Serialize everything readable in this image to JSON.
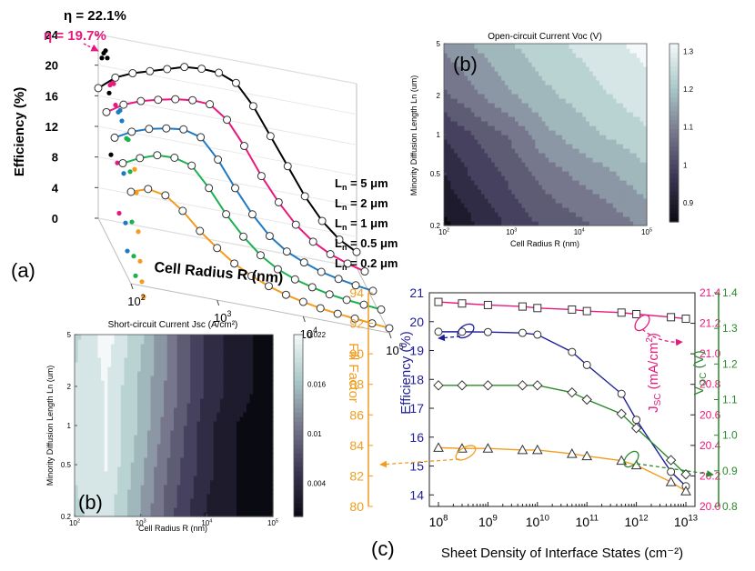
{
  "figure": {
    "panel_labels": [
      "(a)",
      "(b)",
      "(b)",
      "(c)"
    ]
  },
  "chart_data": [
    {
      "id": "a",
      "type": "line",
      "projection": "3d",
      "panel_label": "(a)",
      "xlabel": "Cell Radius R (nm)",
      "ylabel": "Efficiency (%)",
      "xscale": "log",
      "xlim": [
        100,
        100000
      ],
      "ylim": [
        0,
        24
      ],
      "yticks": [
        0,
        4,
        8,
        12,
        16,
        20,
        24
      ],
      "xtick_labels": [
        "10^2",
        "10^3",
        "10^4",
        "10^5"
      ],
      "annotations": [
        {
          "text": "η = 22.1%",
          "color": "#000000"
        },
        {
          "text": "η = 19.7%",
          "color": "#e8197d"
        }
      ],
      "x": [
        100,
        158,
        251,
        398,
        631,
        1000,
        1585,
        2512,
        3981,
        6310,
        10000,
        15849,
        25119,
        39811,
        63096,
        100000
      ],
      "series": [
        {
          "name": "Ln = 5 μm",
          "legend_text": "5 μm",
          "color": "#000000",
          "values": [
            17.0,
            18.8,
            19.8,
            20.5,
            21.2,
            21.9,
            22.1,
            22.0,
            21.1,
            18.5,
            15.0,
            11.5,
            8.0,
            5.2,
            3.2,
            2.0
          ]
        },
        {
          "name": "Ln = 2 μm",
          "legend_text": "2 μm",
          "color": "#e8197d",
          "values": [
            16.0,
            17.4,
            18.3,
            18.9,
            19.4,
            19.7,
            19.6,
            18.0,
            15.0,
            11.5,
            8.5,
            6.0,
            4.2,
            3.0,
            2.2,
            1.6
          ]
        },
        {
          "name": "Ln = 1 μm",
          "legend_text": "1 μm",
          "color": "#1f7ac4",
          "values": [
            14.8,
            16.0,
            16.8,
            17.3,
            17.6,
            17.0,
            14.5,
            11.2,
            8.2,
            5.8,
            4.2,
            3.2,
            2.4,
            1.9,
            1.5,
            1.2
          ]
        },
        {
          "name": "Ln = 0.5 μm",
          "legend_text": "0.5 μm",
          "color": "#19b24e",
          "values": [
            13.6,
            14.7,
            15.5,
            15.6,
            15.0,
            12.5,
            9.5,
            7.0,
            5.0,
            3.6,
            2.7,
            2.1,
            1.6,
            1.3,
            1.1,
            0.9
          ]
        },
        {
          "name": "Ln = 0.2 μm",
          "legend_text": "0.2 μm",
          "color": "#f39c1e",
          "values": [
            12.0,
            12.8,
            12.4,
            10.8,
            8.6,
            6.8,
            5.2,
            4.0,
            3.1,
            2.4,
            1.9,
            1.5,
            1.2,
            1.0,
            0.8,
            0.6
          ]
        }
      ]
    },
    {
      "id": "b_voc",
      "type": "heatmap",
      "panel_label": "(b)",
      "title": "Open-circuit Current Voc (V)",
      "xlabel": "Cell Radius R (nm)",
      "ylabel": "Minority Diffusion Length Ln (um)",
      "xscale": "log",
      "yscale": "log",
      "xlim": [
        100,
        100000
      ],
      "ylim": [
        0.2,
        5
      ],
      "xtick_labels": [
        "10^2",
        "10^3",
        "10^4",
        "10^5"
      ],
      "yticks": [
        0.2,
        0.5,
        1,
        2,
        5
      ],
      "ytick_labels": [
        "0.2",
        "0.5",
        "1",
        "2",
        "5"
      ],
      "colorbar": {
        "min": 0.85,
        "max": 1.32,
        "ticks": [
          0.9,
          1,
          1.1,
          1.2,
          1.3
        ],
        "tick_labels": [
          "0.9",
          "1",
          "1.1",
          "1.2",
          "1.3"
        ]
      },
      "x": [
        100,
        300,
        1000,
        3000,
        10000,
        30000,
        100000
      ],
      "y": [
        0.2,
        0.5,
        1,
        2,
        5
      ],
      "z": [
        [
          0.86,
          0.92,
          0.98,
          1.02,
          1.05,
          1.08,
          1.12
        ],
        [
          0.92,
          0.98,
          1.03,
          1.08,
          1.12,
          1.15,
          1.19
        ],
        [
          0.97,
          1.02,
          1.07,
          1.14,
          1.18,
          1.21,
          1.24
        ],
        [
          1.05,
          1.1,
          1.15,
          1.19,
          1.22,
          1.25,
          1.28
        ],
        [
          1.12,
          1.16,
          1.2,
          1.23,
          1.26,
          1.29,
          1.31
        ]
      ]
    },
    {
      "id": "b_jsc",
      "type": "heatmap",
      "panel_label": "(b)",
      "title": "Short-circuit Current Jsc (A/cm²)",
      "xlabel": "Cell Radius R (nm)",
      "ylabel": "Minority Diffusion Length Ln (um)",
      "xscale": "log",
      "yscale": "log",
      "xlim": [
        100,
        100000
      ],
      "ylim": [
        0.2,
        5
      ],
      "xtick_labels": [
        "10^2",
        "10^3",
        "10^4",
        "10^5"
      ],
      "yticks": [
        0.2,
        0.5,
        1,
        2,
        5
      ],
      "ytick_labels": [
        "0.2",
        "0.5",
        "1",
        "2",
        "5"
      ],
      "colorbar": {
        "min": 0.0,
        "max": 0.022,
        "ticks": [
          0.004,
          0.01,
          0.016,
          0.022
        ],
        "tick_labels": [
          "0.004",
          "0.01",
          "0.016",
          "0.022"
        ]
      },
      "x": [
        100,
        300,
        1000,
        3000,
        10000,
        30000,
        100000
      ],
      "y": [
        0.2,
        0.5,
        1,
        2,
        5
      ],
      "z": [
        [
          0.018,
          0.02,
          0.014,
          0.008,
          0.003,
          0.001,
          0.0
        ],
        [
          0.019,
          0.021,
          0.015,
          0.009,
          0.004,
          0.001,
          0.0
        ],
        [
          0.019,
          0.021,
          0.016,
          0.01,
          0.004,
          0.001,
          0.0
        ],
        [
          0.019,
          0.021,
          0.016,
          0.011,
          0.005,
          0.002,
          0.0
        ],
        [
          0.018,
          0.022,
          0.017,
          0.011,
          0.005,
          0.002,
          0.0
        ]
      ]
    },
    {
      "id": "c",
      "type": "line",
      "panel_label": "(c)",
      "xlabel": "Sheet Density of Interface States (cm⁻²)",
      "xscale": "log",
      "xlim": [
        100000000,
        10000000000000
      ],
      "xtick_labels": [
        "10^8",
        "10^9",
        "10^10",
        "10^11",
        "10^12",
        "10^13"
      ],
      "x": [
        100000000,
        300000000,
        1000000000,
        5000000000,
        10000000000,
        50000000000,
        100000000000,
        500000000000,
        1000000000000,
        5000000000000,
        10000000000000
      ],
      "axes": {
        "efficiency": {
          "label": "Efficiency (%)",
          "color": "#1f1f99",
          "ylim": [
            13.6,
            21
          ],
          "ticks": [
            14,
            15,
            16,
            17,
            18,
            19,
            20,
            21
          ]
        },
        "jsc": {
          "label": "Jsc (mA/cm²)",
          "label_main": "J",
          "label_sub": "SC",
          "label_rest": " (mA/cm",
          "label_sup": "2",
          "label_end": ")",
          "color": "#e8197d",
          "ylim": [
            20.0,
            21.4
          ],
          "ticks": [
            20.0,
            20.2,
            20.4,
            20.6,
            20.8,
            21.0,
            21.2,
            21.4
          ],
          "tick_labels": [
            "20.0",
            "20.2",
            "20.4",
            "20.6",
            "20.8",
            "21.0",
            "21.2",
            "21.4"
          ]
        },
        "fill_factor": {
          "label": "Fill Factor",
          "color": "#f39c1e",
          "ylim": [
            80,
            94
          ],
          "ticks": [
            80,
            82,
            84,
            86,
            88,
            90,
            92,
            94
          ]
        },
        "voc": {
          "label": "Voc (V)",
          "label_main": "V",
          "label_sub": "OC",
          "label_rest": " (V)",
          "color": "#2a8a2a",
          "ylim": [
            0.8,
            1.4
          ],
          "ticks": [
            0.8,
            0.9,
            1.0,
            1.1,
            1.2,
            1.3,
            1.4
          ],
          "tick_labels": [
            "0.8",
            "0.9",
            "1.0",
            "1.1",
            "1.2",
            "1.3",
            "1.4"
          ]
        }
      },
      "series": [
        {
          "name": "Jsc",
          "axis": "jsc",
          "color": "#e8197d",
          "marker": "square",
          "values": [
            21.34,
            21.33,
            21.32,
            21.31,
            21.3,
            21.29,
            21.28,
            21.27,
            21.26,
            21.24,
            21.23
          ]
        },
        {
          "name": "Efficiency",
          "axis": "efficiency",
          "color": "#1f1f99",
          "marker": "circle",
          "values": [
            19.65,
            19.65,
            19.64,
            19.61,
            19.55,
            18.95,
            18.5,
            17.5,
            16.6,
            14.8,
            14.3
          ]
        },
        {
          "name": "Voc",
          "axis": "voc",
          "color": "#2a8a2a",
          "marker": "diamond",
          "values": [
            1.14,
            1.14,
            1.14,
            1.14,
            1.14,
            1.12,
            1.1,
            1.06,
            1.02,
            0.93,
            0.89
          ]
        },
        {
          "name": "Fill Factor",
          "axis": "fill_factor",
          "color": "#f39c1e",
          "marker": "triangle",
          "values": [
            83.85,
            83.8,
            83.8,
            83.7,
            83.7,
            83.45,
            83.3,
            83.0,
            82.7,
            81.6,
            81.0
          ]
        }
      ]
    }
  ]
}
